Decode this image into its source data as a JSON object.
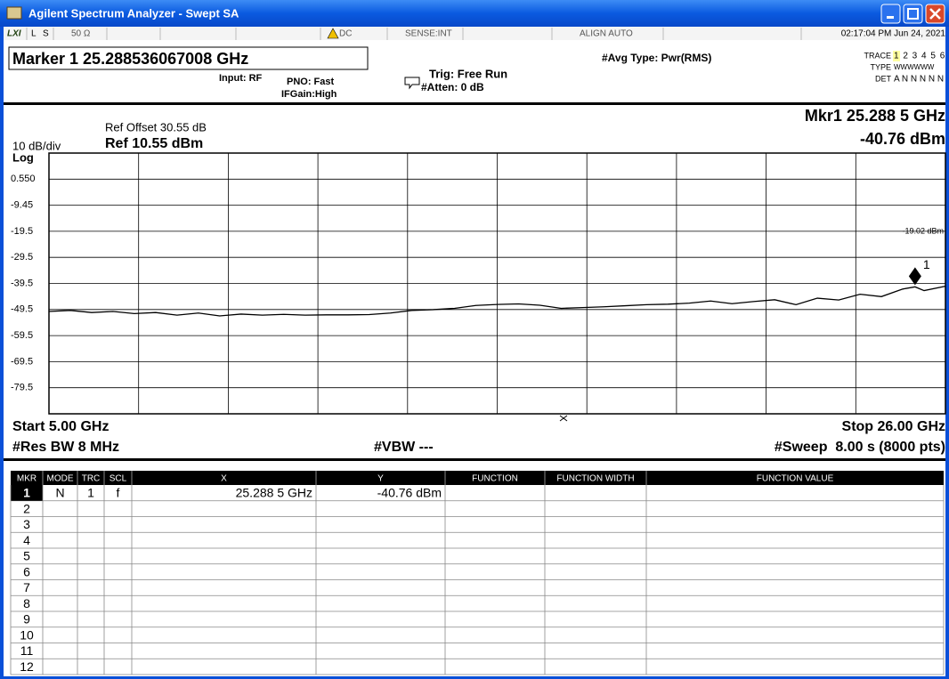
{
  "title_bar": {
    "title": "Agilent Spectrum Analyzer - Swept SA"
  },
  "status_bar": {
    "mode_l": "L",
    "mode_s": "S",
    "impedance": "50 Ω",
    "coupling": "DC",
    "sense": "SENSE:INT",
    "align": "ALIGN AUTO",
    "datetime": "02:17:04 PM Jun 24, 2021"
  },
  "marker_bar": {
    "marker": "Marker 1 25.288536067008 GHz",
    "input": "Input: RF",
    "pno": "PNO: Fast",
    "ifgain": "IFGain:High",
    "trig": "Trig: Free Run",
    "atten": "#Atten: 0 dB",
    "avg_type": "#Avg Type: Pwr(RMS)",
    "trace_label": "TRACE",
    "trace_values": "1 2 3 4 5 6",
    "type_label": "TYPE",
    "type_values": "WWWWWW",
    "det_label": "DET",
    "det_values": "A N N N N N"
  },
  "chart_data": {
    "type": "line",
    "ref_offset": "Ref Offset 30.55 dB",
    "scale": "10 dB/div",
    "ref_level": "Ref 10.55 dBm",
    "scale_type": "Log",
    "marker_readout_freq": "Mkr1 25.288 5 GHz",
    "marker_readout_amp": "-40.76 dBm",
    "display_line_label": "-19.02 dBm",
    "start": "Start 5.00 GHz",
    "stop": "Stop 26.00 GHz",
    "rbw": "#Res BW 8 MHz",
    "vbw": "#VBW ---",
    "sweep": "#Sweep  8.00 s (8000 pts)",
    "xlim": [
      5,
      26
    ],
    "ylim": [
      -89.45,
      10.55
    ],
    "yticks": [
      {
        "value": 0.55,
        "label": "0.550"
      },
      -9.45,
      {
        "value": -19.45,
        "label": "-19.5"
      },
      {
        "value": -29.45,
        "label": "-29.5"
      },
      {
        "value": -39.45,
        "label": "-39.5"
      },
      {
        "value": -49.45,
        "label": "-49.5"
      },
      {
        "value": -59.45,
        "label": "-59.5"
      },
      {
        "value": -69.45,
        "label": "-69.5"
      },
      {
        "value": -79.45,
        "label": "-79.5"
      }
    ],
    "grid": true,
    "series": [
      {
        "name": "Trace 1",
        "color": "#000000",
        "x": [
          5.0,
          5.5,
          6.0,
          6.5,
          7.0,
          7.5,
          8.0,
          8.5,
          9.0,
          9.5,
          10.0,
          10.5,
          11.0,
          11.5,
          12.0,
          12.5,
          13.0,
          13.5,
          14.0,
          14.5,
          15.0,
          15.5,
          16.0,
          16.5,
          17.0,
          17.5,
          18.0,
          18.5,
          19.0,
          19.5,
          20.0,
          20.5,
          21.0,
          21.5,
          22.0,
          22.5,
          23.0,
          23.5,
          24.0,
          24.5,
          25.0,
          25.2885,
          25.5,
          26.0
        ],
        "values": [
          -50.2,
          -49.8,
          -50.6,
          -50.2,
          -51.0,
          -50.6,
          -51.6,
          -50.8,
          -51.9,
          -51.2,
          -51.6,
          -51.3,
          -51.6,
          -51.5,
          -51.5,
          -51.4,
          -50.8,
          -49.8,
          -49.5,
          -49.0,
          -47.9,
          -47.5,
          -47.3,
          -47.8,
          -49.0,
          -48.7,
          -48.4,
          -48.0,
          -47.6,
          -47.4,
          -47.0,
          -46.2,
          -47.2,
          -46.4,
          -45.7,
          -47.6,
          -45.1,
          -45.8,
          -43.6,
          -44.5,
          -41.6,
          -40.76,
          -42.2,
          -40.5
        ]
      }
    ],
    "marker": {
      "label": "1",
      "x": 25.2885,
      "y": -40.76
    }
  },
  "table": {
    "headers": [
      "MKR",
      "MODE",
      "TRC",
      "SCL",
      "X",
      "Y",
      "FUNCTION",
      "FUNCTION WIDTH",
      "FUNCTION VALUE"
    ],
    "rows": [
      [
        "1",
        "N",
        "1",
        "f",
        "25.288 5 GHz",
        "-40.76 dBm"
      ],
      [
        "2"
      ],
      [
        "3"
      ],
      [
        "4"
      ],
      [
        "5"
      ],
      [
        "6"
      ],
      [
        "7"
      ],
      [
        "8"
      ],
      [
        "9"
      ],
      [
        "10"
      ],
      [
        "11"
      ],
      [
        "12"
      ]
    ]
  }
}
